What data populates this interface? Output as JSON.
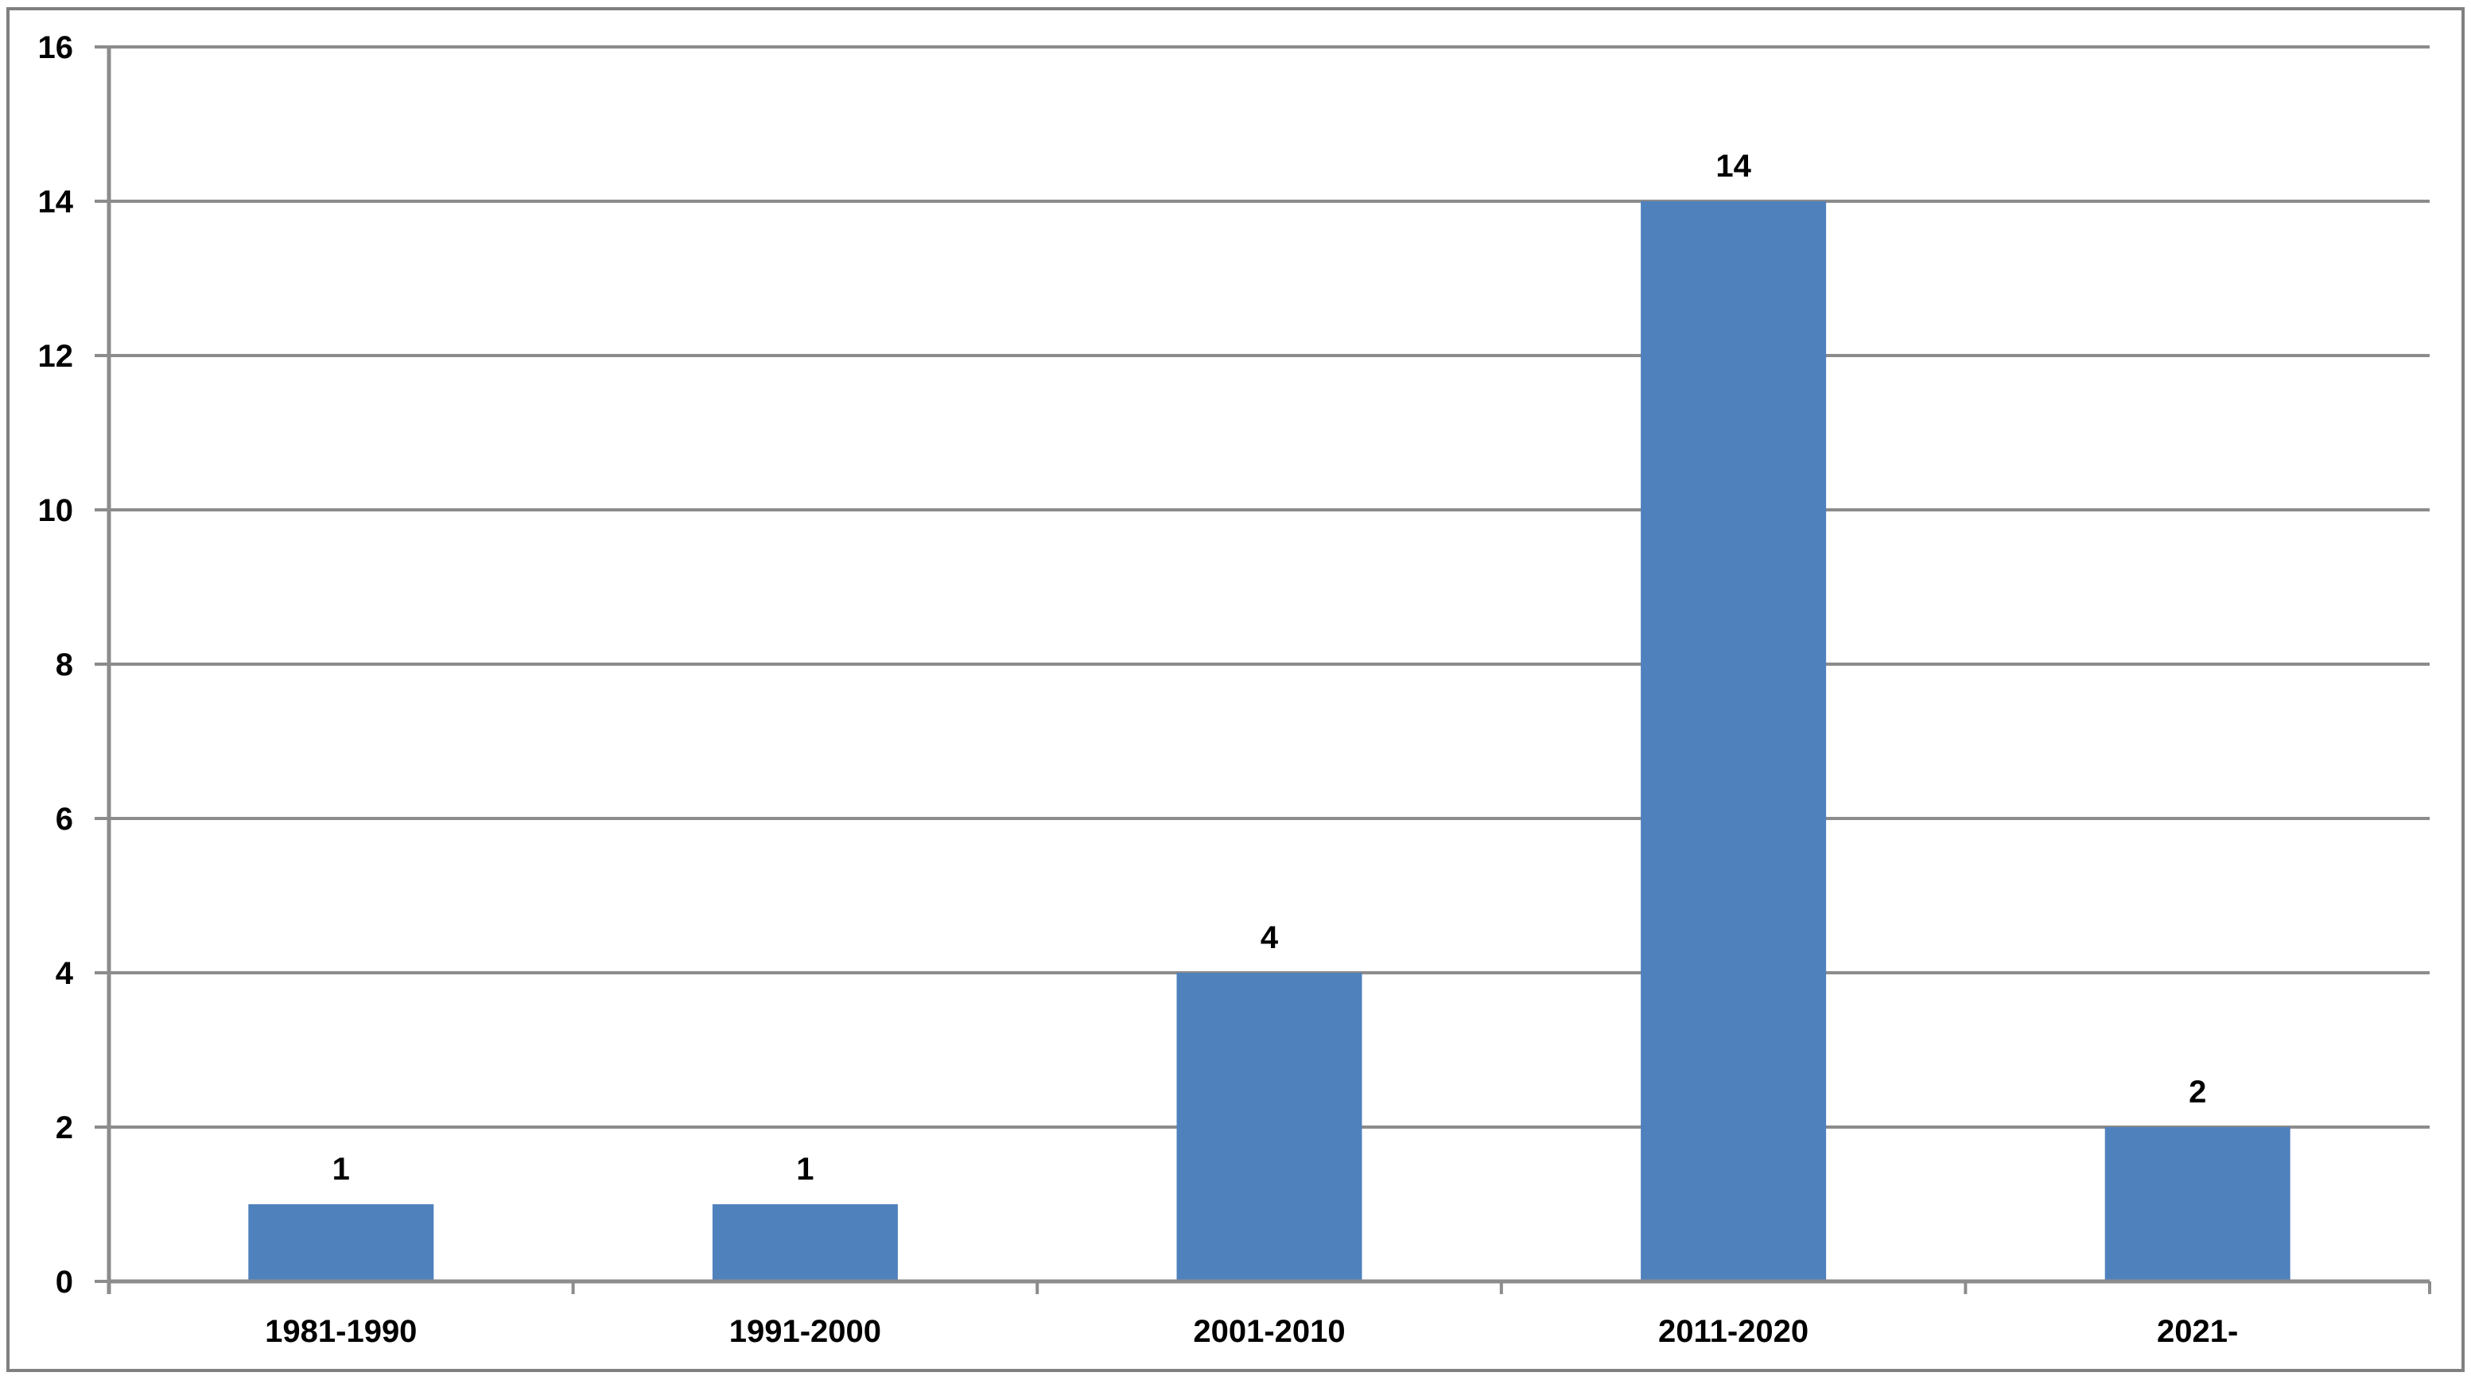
{
  "chart_data": {
    "type": "bar",
    "title": "",
    "categories": [
      "1981-1990",
      "1991-2000",
      "2001-2010",
      "2011-2020",
      "2021-"
    ],
    "values": [
      1,
      1,
      4,
      14,
      2
    ],
    "data_labels": [
      "1",
      "1",
      "4",
      "14",
      "2"
    ],
    "xlabel": "",
    "ylabel": "",
    "ylim": [
      0,
      16
    ],
    "ytick_step": 2,
    "ytick_labels": [
      "0",
      "2",
      "4",
      "6",
      "8",
      "10",
      "12",
      "14",
      "16"
    ],
    "grid": "horizontal",
    "legend_position": "none",
    "colors": {
      "bar": "#4F81BD",
      "gridline": "#8C8C8C",
      "axis": "#8C8C8C",
      "frame_border": "#808080",
      "text": "#000000",
      "background": "#FFFFFF"
    }
  }
}
